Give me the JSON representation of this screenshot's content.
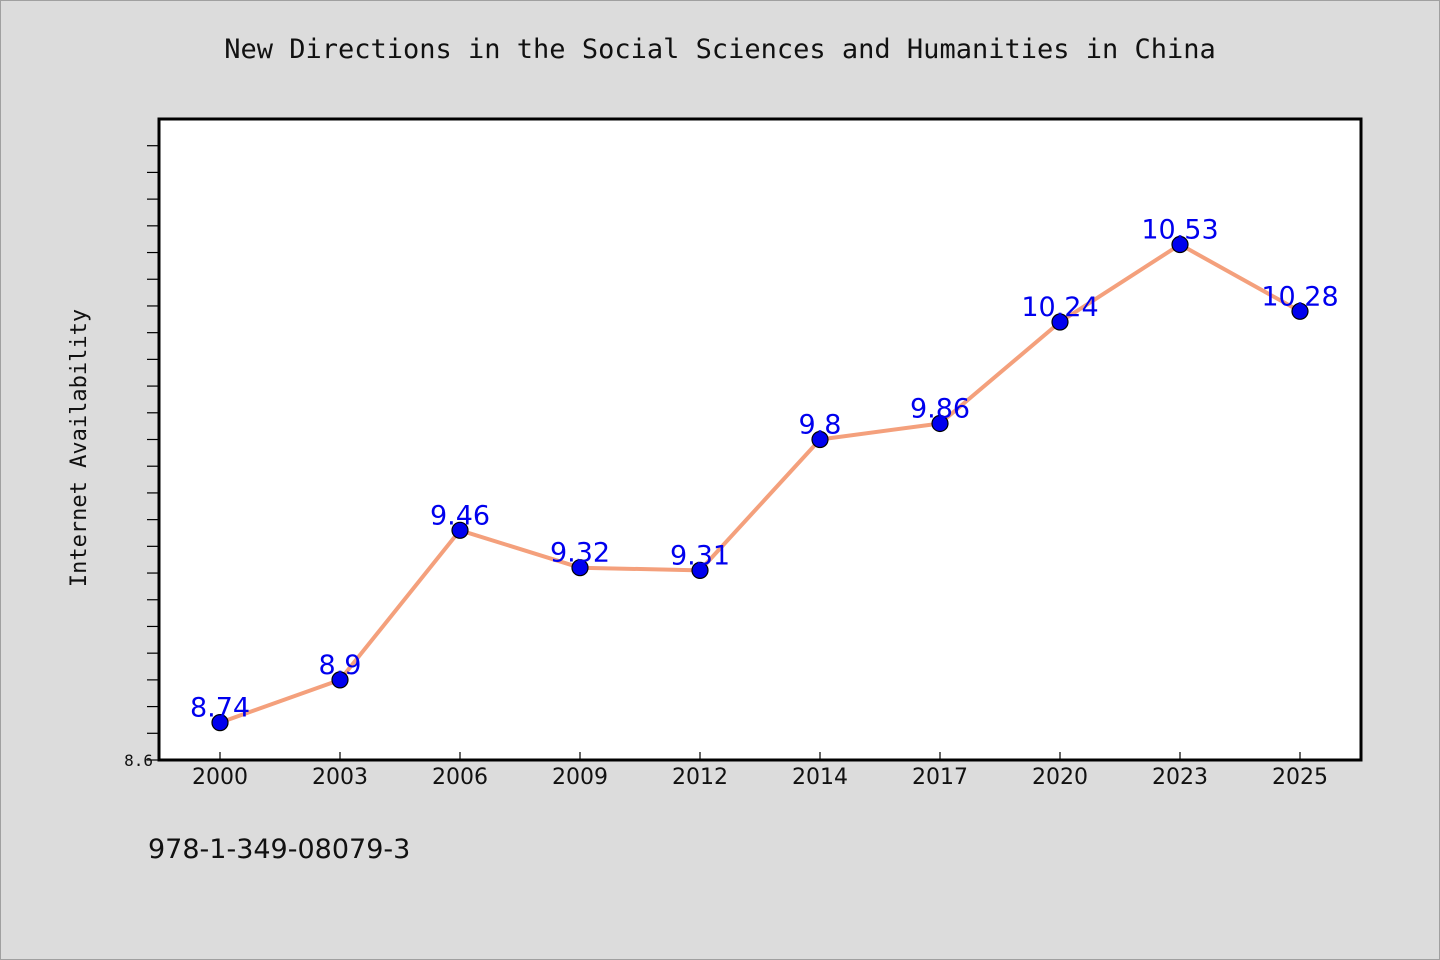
{
  "title": "New Directions in the Social Sciences and Humanities in China",
  "footer_code": "978-1-349-08079-3",
  "colors": {
    "background": "#dcdcdc",
    "plot_background": "#ffffff",
    "line": "#f4a07c",
    "marker": "#0000ee",
    "data_label": "#0000ee"
  },
  "chart_data": {
    "type": "line",
    "title": "New Directions in the Social Sciences and Humanities in China",
    "xlabel": "",
    "ylabel": "Internet Availability",
    "categories": [
      "2000",
      "2003",
      "2006",
      "2009",
      "2012",
      "2014",
      "2017",
      "2020",
      "2023",
      "2025"
    ],
    "series": [
      {
        "values": [
          8.74,
          8.9,
          9.46,
          9.32,
          9.31,
          9.8,
          9.86,
          10.24,
          10.53,
          10.28
        ],
        "labels": [
          "8.74",
          "8.9",
          "9.46",
          "9.32",
          "9.31",
          "9.8",
          "9.86",
          "10.24",
          "10.53",
          "10.28"
        ]
      }
    ],
    "ylim": [
      8.6,
      11.0
    ],
    "y_tick_step": 0.1,
    "y_tick_labels_shown": [
      "8.6"
    ],
    "grid": false,
    "markers": "circle",
    "data_labels": true
  }
}
